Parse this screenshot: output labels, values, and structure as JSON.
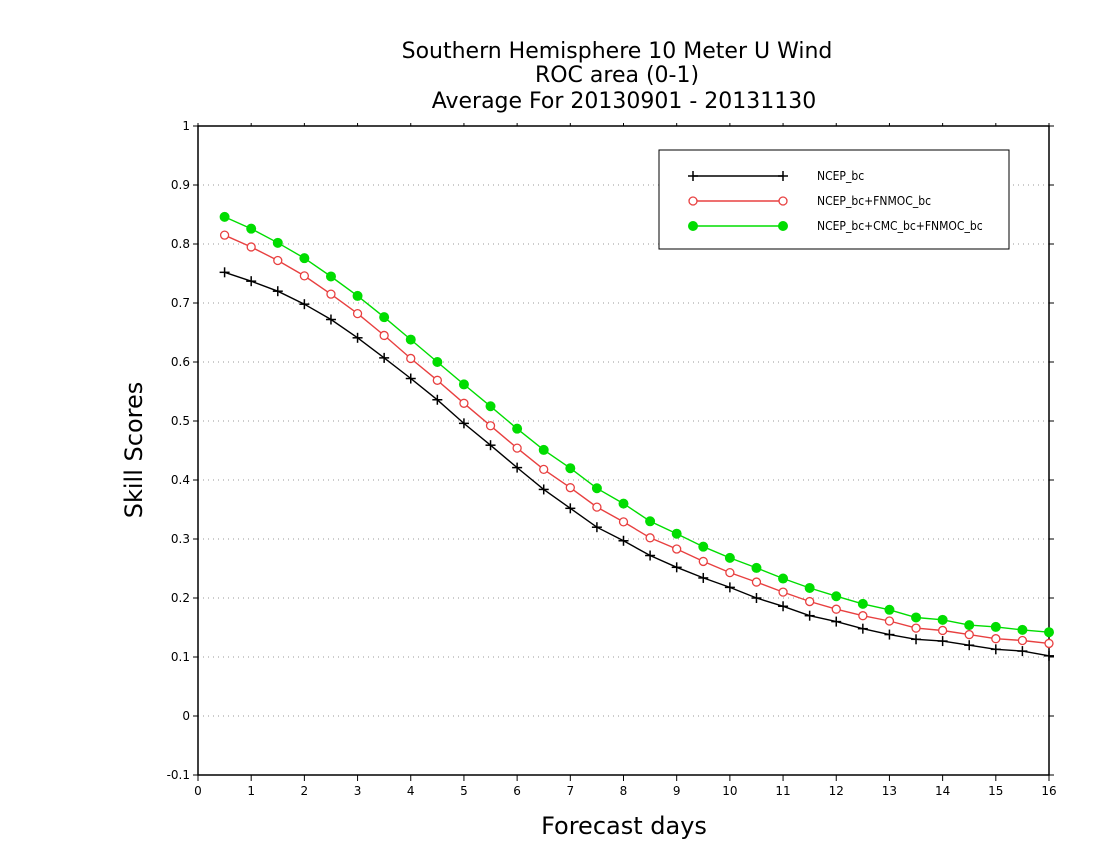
{
  "chart_data": {
    "type": "line",
    "title": "Southern Hemisphere 10 Meter U Wind",
    "subtitle": "ROC area (0-1)",
    "subtitle2": "Average For 20130901 - 20131130",
    "xlabel": "Forecast days",
    "ylabel": "Skill Scores",
    "xlim": [
      0,
      16
    ],
    "ylim": [
      -0.1,
      1
    ],
    "xticks": [
      "0",
      "1",
      "2",
      "3",
      "4",
      "5",
      "6",
      "7",
      "8",
      "9",
      "10",
      "11",
      "12",
      "13",
      "14",
      "15",
      "16"
    ],
    "yticks": [
      "-0.1",
      "0",
      "0.1",
      "0.2",
      "0.3",
      "0.4",
      "0.5",
      "0.6",
      "0.7",
      "0.8",
      "0.9",
      "1"
    ],
    "grid": true,
    "legend_position": "top-right",
    "x": [
      0.5,
      1,
      1.5,
      2,
      2.5,
      3,
      3.5,
      4,
      4.5,
      5,
      5.5,
      6,
      6.5,
      7,
      7.5,
      8,
      8.5,
      9,
      9.5,
      10,
      10.5,
      11,
      11.5,
      12,
      12.5,
      13,
      13.5,
      14,
      14.5,
      15,
      15.5,
      16
    ],
    "series": [
      {
        "name": "NCEP_bc",
        "color": "#000000",
        "marker": "plus",
        "values": [
          0.752,
          0.737,
          0.72,
          0.698,
          0.672,
          0.641,
          0.607,
          0.572,
          0.536,
          0.496,
          0.459,
          0.421,
          0.384,
          0.352,
          0.32,
          0.297,
          0.272,
          0.252,
          0.234,
          0.218,
          0.2,
          0.186,
          0.17,
          0.16,
          0.148,
          0.138,
          0.13,
          0.127,
          0.12,
          0.113,
          0.11,
          0.102
        ]
      },
      {
        "name": "NCEP_bc+FNMOC_bc",
        "color": "#e84040",
        "marker": "open-circle",
        "values": [
          0.815,
          0.795,
          0.772,
          0.746,
          0.715,
          0.682,
          0.645,
          0.606,
          0.569,
          0.53,
          0.492,
          0.454,
          0.418,
          0.387,
          0.354,
          0.329,
          0.302,
          0.283,
          0.262,
          0.243,
          0.227,
          0.21,
          0.194,
          0.181,
          0.17,
          0.161,
          0.149,
          0.145,
          0.138,
          0.131,
          0.128,
          0.123
        ]
      },
      {
        "name": "NCEP_bc+CMC_bc+FNMOC_bc",
        "color": "#00dd00",
        "marker": "filled-circle",
        "values": [
          0.846,
          0.826,
          0.802,
          0.776,
          0.745,
          0.712,
          0.676,
          0.638,
          0.6,
          0.562,
          0.525,
          0.487,
          0.451,
          0.42,
          0.386,
          0.36,
          0.33,
          0.309,
          0.287,
          0.268,
          0.251,
          0.233,
          0.217,
          0.203,
          0.19,
          0.18,
          0.167,
          0.163,
          0.154,
          0.151,
          0.146,
          0.142
        ]
      }
    ]
  }
}
